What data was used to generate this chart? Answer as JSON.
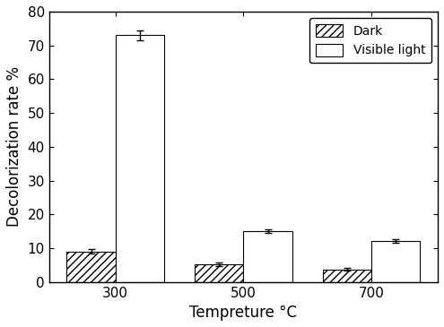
{
  "categories": [
    "300",
    "500",
    "700"
  ],
  "dark_values": [
    9.0,
    5.2,
    3.7
  ],
  "light_values": [
    73.0,
    15.0,
    12.0
  ],
  "dark_errors": [
    0.6,
    0.5,
    0.4
  ],
  "light_errors": [
    1.5,
    0.6,
    0.5
  ],
  "xlabel": "Tempreture °C",
  "ylabel": "Decolorization rate %",
  "ylim": [
    0,
    80
  ],
  "yticks": [
    0,
    10,
    20,
    30,
    40,
    50,
    60,
    70,
    80
  ],
  "legend_dark": "Dark",
  "legend_light": "Visible light",
  "bar_width": 0.38,
  "dark_color": "#ffffff",
  "light_color": "#ffffff",
  "dark_hatch": "////",
  "light_hatch": "",
  "bg_color": "#ffffff",
  "label_fontsize": 12,
  "tick_fontsize": 11,
  "legend_fontsize": 10
}
